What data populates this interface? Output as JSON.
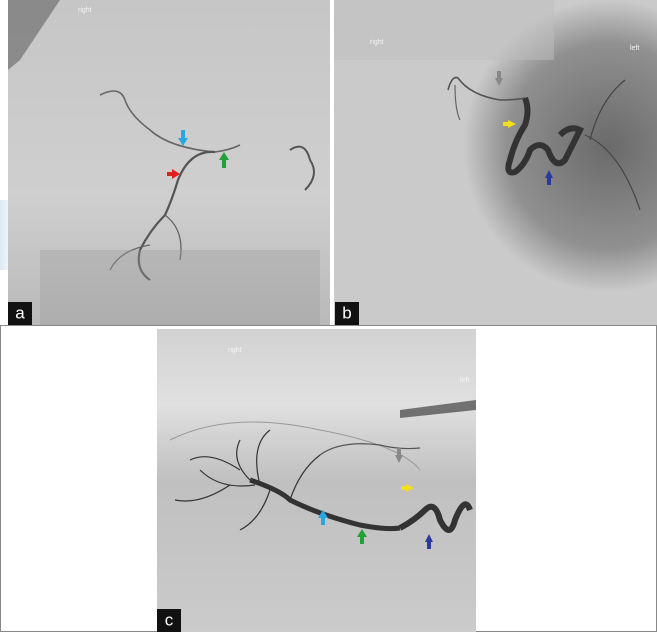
{
  "panels": [
    {
      "label": "a",
      "annotations": [
        "right"
      ]
    },
    {
      "label": "b",
      "annotations": [
        "right",
        "left"
      ]
    },
    {
      "label": "c",
      "annotations": [
        "right",
        "left"
      ]
    }
  ]
}
